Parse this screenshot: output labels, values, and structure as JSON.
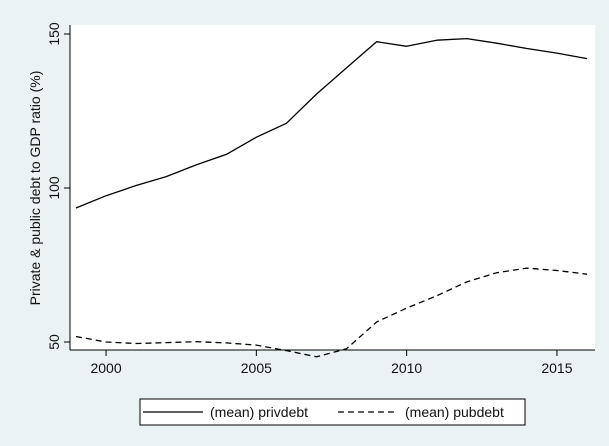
{
  "chart_data": {
    "type": "line",
    "title": "",
    "xlabel": "",
    "ylabel": "Private & public debt to GDP ratio (%)",
    "xlim": [
      1999,
      2016
    ],
    "ylim": [
      47,
      150
    ],
    "xticks": [
      2000,
      2005,
      2010,
      2015
    ],
    "yticks": [
      50,
      100,
      150
    ],
    "grid": false,
    "legend": "bottom",
    "x": [
      1999,
      2000,
      2001,
      2002,
      2003,
      2004,
      2005,
      2006,
      2007,
      2008,
      2009,
      2010,
      2011,
      2012,
      2013,
      2014,
      2015,
      2016
    ],
    "series": [
      {
        "name": "(mean) privdebt",
        "style": "solid",
        "color": "#000000",
        "values": [
          93.5,
          97.5,
          100.8,
          103.7,
          107.5,
          110.9,
          116.5,
          121.0,
          130.5,
          139.0,
          147.5,
          146.0,
          148.0,
          148.5,
          147.0,
          145.3,
          143.8,
          142.0
        ]
      },
      {
        "name": "(mean) pubdebt",
        "style": "dashed",
        "color": "#000000",
        "values": [
          51.8,
          50.0,
          49.5,
          49.8,
          50.1,
          49.7,
          49.0,
          47.2,
          45.2,
          47.8,
          56.5,
          61.0,
          65.0,
          69.5,
          72.5,
          74.0,
          73.2,
          72.0
        ]
      }
    ]
  }
}
